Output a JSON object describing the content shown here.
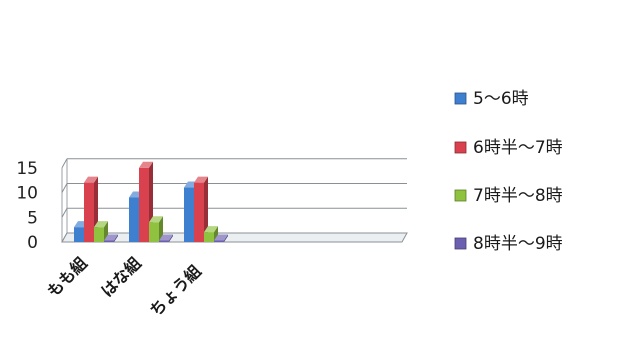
{
  "chart_data": {
    "type": "bar",
    "categories": [
      "もも組",
      "はな組",
      "ちょう組"
    ],
    "series": [
      {
        "name": "5～6時",
        "values": [
          3,
          9,
          11
        ],
        "color": "#3f7fd0"
      },
      {
        "name": "6時半～7時",
        "values": [
          12,
          15,
          12
        ],
        "color": "#d9414e"
      },
      {
        "name": "7時半～8時",
        "values": [
          3,
          4,
          2
        ],
        "color": "#8fc23f"
      },
      {
        "name": "8時半～9時",
        "values": [
          0,
          0,
          0
        ],
        "color": "#6b5fb0"
      }
    ],
    "y_ticks": [
      0,
      5,
      10,
      15
    ],
    "ylim": [
      0,
      15
    ],
    "grid": true,
    "legend_position": "right",
    "render_3d": true
  }
}
